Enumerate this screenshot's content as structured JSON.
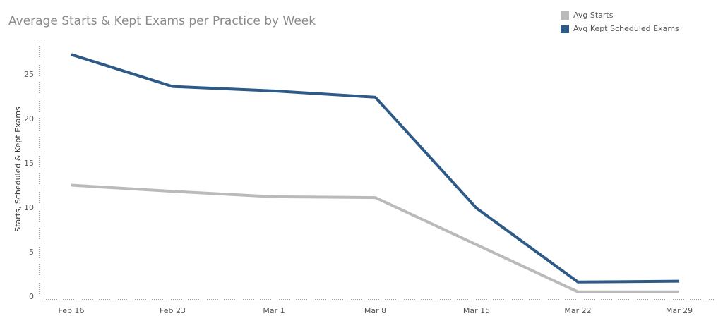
{
  "chart_data": {
    "type": "line",
    "title": "Average Starts & Kept Exams per Practice by Week",
    "ylabel": "Starts, Scheduled & Kept Exams",
    "xlabel": "",
    "categories": [
      "Feb 16",
      "Feb 23",
      "Mar 1",
      "Mar 8",
      "Mar 15",
      "Mar 22",
      "Mar 29"
    ],
    "ylim": [
      0,
      28
    ],
    "yticks": [
      0,
      5,
      10,
      15,
      20,
      25
    ],
    "legend_position": "top-right",
    "grid": false,
    "series": [
      {
        "name": "Avg Starts",
        "color": "#bababa",
        "values": [
          12.5,
          11.8,
          11.2,
          11.1,
          5.8,
          0.5,
          0.5
        ]
      },
      {
        "name": "Avg Kept Scheduled Exams",
        "color": "#2e5a87",
        "values": [
          27.2,
          23.6,
          23.1,
          22.4,
          9.9,
          1.6,
          1.7
        ]
      }
    ]
  }
}
